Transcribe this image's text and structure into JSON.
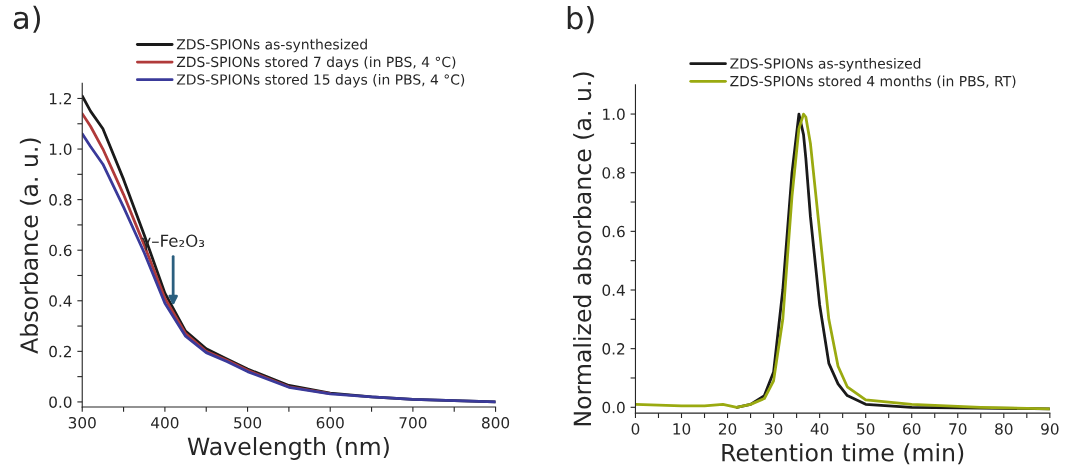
{
  "chart_data": [
    {
      "type": "line",
      "title": "a)",
      "xlabel": "Wavelength (nm)",
      "ylabel": "Absorbance (a. u.)",
      "x": [
        300,
        310,
        325,
        350,
        375,
        400,
        425,
        450,
        475,
        500,
        550,
        600,
        650,
        700,
        750,
        800
      ],
      "series": [
        {
          "name": "ZDS-SPIONs as-synthesized",
          "color": "#1a1a1a",
          "values": [
            1.21,
            1.15,
            1.08,
            0.88,
            0.66,
            0.43,
            0.28,
            0.21,
            0.17,
            0.13,
            0.065,
            0.035,
            0.02,
            0.01,
            0.005,
            0.0
          ]
        },
        {
          "name": "ZDS-SPIONs stored 7 days (in PBS, 4 °C)",
          "color": "#b03a3a",
          "values": [
            1.14,
            1.09,
            1.0,
            0.82,
            0.62,
            0.41,
            0.27,
            0.2,
            0.165,
            0.125,
            0.06,
            0.033,
            null,
            null,
            null,
            null
          ]
        },
        {
          "name": "ZDS-SPIONs stored 15 days (in PBS, 4 °C)",
          "color": "#3a3a9a",
          "values": [
            1.06,
            1.01,
            0.94,
            0.77,
            0.59,
            0.39,
            0.26,
            0.195,
            0.16,
            0.12,
            0.058,
            0.032,
            0.02,
            0.01,
            0.005,
            0.0
          ]
        }
      ],
      "xlim": [
        300,
        800
      ],
      "ylim": [
        -0.02,
        1.26
      ],
      "xticks": [
        300,
        {
          "value": 350,
          "label": null
        },
        400,
        {
          "value": 450,
          "label": null
        },
        500,
        {
          "value": 550,
          "label": null
        },
        600,
        {
          "value": 650,
          "label": null
        },
        700,
        {
          "value": 750,
          "label": null
        },
        800
      ],
      "yticks": [
        {
          "value": 0,
          "label": "0.0"
        },
        {
          "value": 0.1,
          "label": null
        },
        0.2,
        {
          "value": 0.3,
          "label": null
        },
        0.4,
        {
          "value": 0.5,
          "label": null
        },
        0.6,
        {
          "value": 0.7,
          "label": null
        },
        0.8,
        {
          "value": 0.9,
          "label": null
        },
        {
          "value": 1,
          "label": "1.0"
        },
        {
          "value": 1.1,
          "label": null
        },
        1.2
      ],
      "annotations": [
        {
          "text": "γ–Fe₂O₃",
          "x": 410,
          "y": 0.38
        }
      ],
      "legend": "top",
      "grid": false
    },
    {
      "type": "line",
      "title": "b)",
      "xlabel": "Retention time (min)",
      "ylabel": "Normalized absorbance (a. u.)",
      "x": [
        0,
        10,
        15,
        19,
        22,
        25,
        28,
        30,
        32,
        34,
        35.5,
        36.5,
        37,
        38,
        40,
        42,
        44,
        46,
        50,
        60,
        75,
        90
      ],
      "series": [
        {
          "name": "ZDS-SPIONs as-synthesized",
          "color": "#1a1a1a",
          "values": [
            null,
            null,
            null,
            null,
            0.0,
            0.01,
            0.04,
            0.12,
            0.4,
            0.8,
            1.0,
            0.93,
            0.85,
            0.65,
            0.35,
            0.15,
            0.08,
            0.04,
            0.01,
            0.0,
            -0.003,
            -0.005
          ]
        },
        {
          "name": "ZDS-SPIONs stored 4 months (in PBS, RT)",
          "color": "#9aaa10",
          "values": [
            0.01,
            0.005,
            0.005,
            0.01,
            0.0,
            0.01,
            0.03,
            0.09,
            0.3,
            0.72,
            0.95,
            1.0,
            0.99,
            0.9,
            0.6,
            0.3,
            0.14,
            0.07,
            0.025,
            0.01,
            0.0,
            -0.005
          ]
        }
      ],
      "xlim": [
        0,
        90
      ],
      "ylim": [
        -0.02,
        1.1
      ],
      "xticks": [
        0,
        {
          "value": 5,
          "label": null
        },
        10,
        {
          "value": 15,
          "label": null
        },
        20,
        {
          "value": 25,
          "label": null
        },
        30,
        {
          "value": 35,
          "label": null
        },
        40,
        {
          "value": 45,
          "label": null
        },
        50,
        {
          "value": 55,
          "label": null
        },
        60,
        {
          "value": 65,
          "label": null
        },
        70,
        {
          "value": 75,
          "label": null
        },
        80,
        {
          "value": 85,
          "label": null
        },
        90
      ],
      "yticks": [
        {
          "value": 0,
          "label": "0.0"
        },
        {
          "value": 0.1,
          "label": null
        },
        0.2,
        {
          "value": 0.3,
          "label": null
        },
        0.4,
        {
          "value": 0.5,
          "label": null
        },
        0.6,
        {
          "value": 0.7,
          "label": null
        },
        0.8,
        {
          "value": 0.9,
          "label": null
        },
        {
          "value": 1,
          "label": "1.0"
        }
      ],
      "legend": "top",
      "grid": false
    }
  ]
}
